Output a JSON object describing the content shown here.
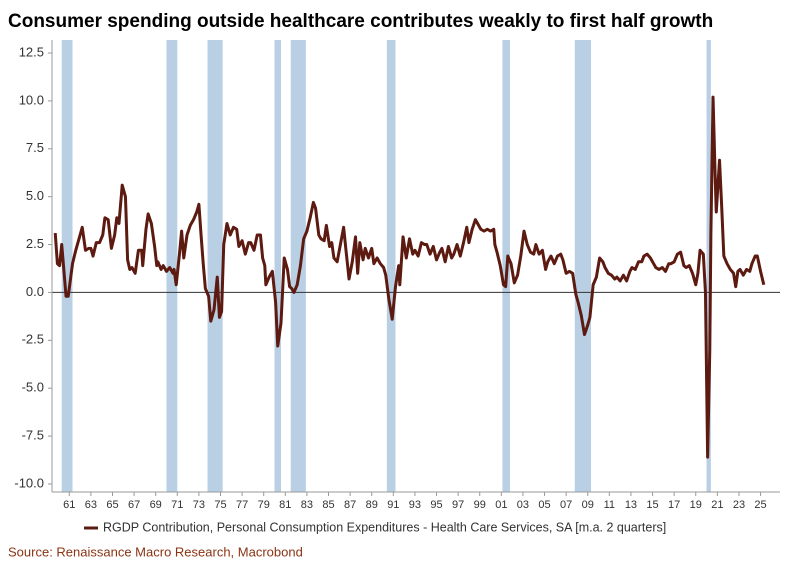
{
  "chart_data": {
    "type": "line",
    "title": "Consumer spending outside healthcare contributes weakly to first half growth",
    "source": "Source: Renaissance Macro Research, Macrobond",
    "xlim": [
      1959.4,
      2026.8
    ],
    "ylim": [
      -10.42,
      13.18
    ],
    "yticks": [
      -7.5,
      -2.5,
      2.5,
      7.5,
      12.5,
      {
        "value": -10,
        "label": "-10.0"
      },
      {
        "value": -5,
        "label": "-5.0"
      },
      {
        "value": 0,
        "label": "0.0"
      },
      {
        "value": 5,
        "label": "5.0"
      },
      {
        "value": 10,
        "label": "10.0"
      }
    ],
    "xticks": [
      {
        "value": 1961,
        "label": "61"
      },
      {
        "value": 1963,
        "label": "63"
      },
      {
        "value": 1965,
        "label": "65"
      },
      {
        "value": 1967,
        "label": "67"
      },
      {
        "value": 1969,
        "label": "69"
      },
      {
        "value": 1971,
        "label": "71"
      },
      {
        "value": 1973,
        "label": "73"
      },
      {
        "value": 1975,
        "label": "75"
      },
      {
        "value": 1977,
        "label": "77"
      },
      {
        "value": 1979,
        "label": "79"
      },
      {
        "value": 1981,
        "label": "81"
      },
      {
        "value": 1983,
        "label": "83"
      },
      {
        "value": 1985,
        "label": "85"
      },
      {
        "value": 1987,
        "label": "87"
      },
      {
        "value": 1989,
        "label": "89"
      },
      {
        "value": 1991,
        "label": "91"
      },
      {
        "value": 1993,
        "label": "93"
      },
      {
        "value": 1995,
        "label": "95"
      },
      {
        "value": 1997,
        "label": "97"
      },
      {
        "value": 1999,
        "label": "99"
      },
      {
        "value": 2001,
        "label": "01"
      },
      {
        "value": 2003,
        "label": "03"
      },
      {
        "value": 2005,
        "label": "05"
      },
      {
        "value": 2007,
        "label": "07"
      },
      {
        "value": 2009,
        "label": "09"
      },
      {
        "value": 2011,
        "label": "11"
      },
      {
        "value": 2013,
        "label": "13"
      },
      {
        "value": 2015,
        "label": "15"
      },
      {
        "value": 2017,
        "label": "17"
      },
      {
        "value": 2019,
        "label": "19"
      },
      {
        "value": 2021,
        "label": "21"
      },
      {
        "value": 2023,
        "label": "23"
      },
      {
        "value": 2025,
        "label": "25"
      }
    ],
    "recession_color": "#b8cfe4",
    "recessions": [
      {
        "start": 1960.3,
        "end": 1961.3
      },
      {
        "start": 1970.0,
        "end": 1971.0
      },
      {
        "start": 1973.8,
        "end": 1975.2
      },
      {
        "start": 1980.0,
        "end": 1980.6
      },
      {
        "start": 1981.5,
        "end": 1982.9
      },
      {
        "start": 1990.4,
        "end": 1991.2
      },
      {
        "start": 2001.1,
        "end": 2001.8
      },
      {
        "start": 2007.8,
        "end": 2009.3
      },
      {
        "start": 2020.0,
        "end": 2020.4
      }
    ],
    "x": [
      1959.7,
      1959.9,
      1960.1,
      1960.3,
      1960.7,
      1960.9,
      1961.3,
      1961.6,
      1962.0,
      1962.2,
      1962.5,
      1962.8,
      1963.0,
      1963.2,
      1963.5,
      1963.8,
      1964.1,
      1964.3,
      1964.6,
      1964.9,
      1965.2,
      1965.4,
      1965.6,
      1965.9,
      1966.2,
      1966.4,
      1966.6,
      1966.8,
      1967.1,
      1967.4,
      1967.7,
      1967.8,
      1968.1,
      1968.3,
      1968.6,
      1968.9,
      1969.1,
      1969.2,
      1969.5,
      1969.7,
      1970.0,
      1970.3,
      1970.6,
      1970.7,
      1970.9,
      1971.2,
      1971.4,
      1971.6,
      1971.9,
      1972.2,
      1972.5,
      1972.8,
      1973.0,
      1973.2,
      1973.4,
      1973.6,
      1973.9,
      1974.1,
      1974.4,
      1974.7,
      1974.9,
      1975.1,
      1975.3,
      1975.6,
      1975.9,
      1976.2,
      1976.5,
      1976.7,
      1977.0,
      1977.3,
      1977.6,
      1977.8,
      1978.1,
      1978.4,
      1978.7,
      1978.9,
      1979.1,
      1979.2,
      1979.5,
      1979.8,
      1980.1,
      1980.3,
      1980.6,
      1980.9,
      1981.2,
      1981.4,
      1981.6,
      1981.8,
      1982.1,
      1982.4,
      1982.7,
      1983.0,
      1983.3,
      1983.6,
      1983.8,
      1984.1,
      1984.3,
      1984.6,
      1984.8,
      1985.1,
      1985.3,
      1985.5,
      1985.8,
      1986.1,
      1986.4,
      1986.6,
      1986.9,
      1987.2,
      1987.5,
      1987.7,
      1987.9,
      1988.2,
      1988.4,
      1988.7,
      1989.0,
      1989.2,
      1989.5,
      1989.8,
      1990.1,
      1990.3,
      1990.6,
      1990.9,
      1991.2,
      1991.5,
      1991.6,
      1991.9,
      1992.2,
      1992.5,
      1992.8,
      1993.0,
      1993.3,
      1993.6,
      1993.9,
      1994.1,
      1994.4,
      1994.7,
      1995.0,
      1995.3,
      1995.5,
      1995.8,
      1996.1,
      1996.4,
      1996.6,
      1996.9,
      1997.2,
      1997.5,
      1997.8,
      1998.0,
      1998.3,
      1998.6,
      1998.9,
      1999.1,
      1999.4,
      1999.7,
      2000.0,
      2000.3,
      2000.4,
      2000.6,
      2000.9,
      2001.2,
      2001.4,
      2001.6,
      2001.9,
      2002.2,
      2002.5,
      2002.8,
      2003.1,
      2003.4,
      2003.7,
      2004.0,
      2004.2,
      2004.5,
      2004.8,
      2005.1,
      2005.3,
      2005.6,
      2005.9,
      2006.2,
      2006.5,
      2006.7,
      2007.0,
      2007.3,
      2007.6,
      2007.9,
      2008.1,
      2008.4,
      2008.7,
      2009.0,
      2009.2,
      2009.5,
      2009.8,
      2010.1,
      2010.4,
      2010.6,
      2010.9,
      2011.2,
      2011.5,
      2011.7,
      2012.0,
      2012.3,
      2012.6,
      2012.9,
      2013.1,
      2013.4,
      2013.7,
      2014.0,
      2014.2,
      2014.5,
      2014.8,
      2015.1,
      2015.3,
      2015.6,
      2015.9,
      2016.2,
      2016.5,
      2016.7,
      2017.0,
      2017.3,
      2017.6,
      2017.9,
      2018.1,
      2018.4,
      2018.7,
      2019.0,
      2019.2,
      2019.4,
      2019.7,
      2019.9,
      2020.1,
      2020.3,
      2020.4,
      2020.6,
      2020.8,
      2020.9,
      2021.2,
      2021.4,
      2021.6,
      2021.9,
      2022.2,
      2022.5,
      2022.7,
      2022.9,
      2023.1,
      2023.4,
      2023.7,
      2024.0,
      2024.2,
      2024.5,
      2024.7,
      2025.0,
      2025.3
    ],
    "series": [
      {
        "name": "RGDP Contribution, Personal Consumption Expenditures - Health Care Services, SA [m.a. 2 quarters]",
        "color": "#5c1a10",
        "values": [
          3.1,
          1.5,
          1.4,
          2.5,
          -0.2,
          -0.2,
          1.5,
          2.2,
          3.0,
          3.4,
          2.2,
          2.3,
          2.3,
          1.9,
          2.6,
          2.6,
          3.0,
          3.9,
          3.8,
          2.3,
          3.0,
          3.9,
          3.6,
          5.6,
          5.0,
          1.7,
          1.2,
          1.3,
          1.0,
          2.2,
          2.2,
          1.4,
          3.3,
          4.1,
          3.6,
          2.4,
          1.4,
          1.6,
          1.2,
          1.4,
          1.1,
          1.3,
          1.0,
          1.2,
          0.4,
          2.0,
          3.2,
          1.8,
          3.0,
          3.5,
          3.8,
          4.2,
          4.6,
          3.0,
          1.5,
          0.2,
          -0.2,
          -1.5,
          -0.9,
          0.8,
          -1.3,
          -1.0,
          2.5,
          3.6,
          3.0,
          3.4,
          3.3,
          2.4,
          2.7,
          2.0,
          2.6,
          2.6,
          2.2,
          3.0,
          3.0,
          1.8,
          1.4,
          0.4,
          0.8,
          1.1,
          -0.5,
          -2.8,
          -1.6,
          1.8,
          1.2,
          0.3,
          0.2,
          0.0,
          0.4,
          1.4,
          2.8,
          3.2,
          3.9,
          4.7,
          4.4,
          3.0,
          2.8,
          2.7,
          3.5,
          2.4,
          2.6,
          1.8,
          1.6,
          2.5,
          3.4,
          2.3,
          0.7,
          1.6,
          2.9,
          1.0,
          2.6,
          1.7,
          2.3,
          1.8,
          2.3,
          1.5,
          1.8,
          1.5,
          1.3,
          0.9,
          -0.4,
          -1.4,
          0.3,
          1.4,
          0.4,
          2.9,
          1.8,
          2.8,
          2.0,
          2.2,
          1.9,
          2.6,
          2.5,
          2.5,
          2.0,
          2.4,
          1.7,
          2.1,
          2.3,
          1.6,
          2.4,
          1.8,
          2.0,
          2.5,
          1.9,
          2.6,
          3.4,
          2.6,
          3.3,
          3.8,
          3.5,
          3.3,
          3.2,
          3.3,
          3.2,
          3.3,
          2.5,
          2.1,
          1.4,
          0.4,
          0.3,
          1.9,
          1.5,
          0.5,
          0.9,
          1.9,
          3.2,
          2.5,
          2.1,
          2.0,
          2.5,
          2.0,
          2.2,
          1.2,
          1.6,
          1.9,
          1.5,
          1.9,
          2.0,
          1.7,
          1.0,
          1.1,
          1.0,
          -0.1,
          -0.5,
          -1.2,
          -2.2,
          -1.7,
          -1.3,
          0.4,
          0.8,
          1.8,
          1.6,
          1.3,
          1.0,
          0.9,
          0.7,
          0.8,
          0.6,
          0.9,
          0.6,
          1.1,
          1.3,
          1.2,
          1.6,
          1.6,
          1.9,
          2.0,
          1.8,
          1.5,
          1.3,
          1.2,
          1.3,
          1.1,
          1.5,
          1.5,
          1.6,
          2.0,
          2.1,
          1.4,
          1.3,
          1.4,
          1.0,
          0.4,
          1.0,
          2.2,
          2.0,
          0.0,
          -8.6,
          -3.0,
          3.0,
          10.2,
          6.0,
          4.2,
          6.9,
          4.5,
          1.9,
          1.5,
          1.2,
          1.0,
          0.3,
          1.1,
          1.2,
          0.9,
          1.2,
          1.1,
          1.5,
          1.9,
          1.9,
          1.1,
          0.4
        ]
      }
    ]
  }
}
